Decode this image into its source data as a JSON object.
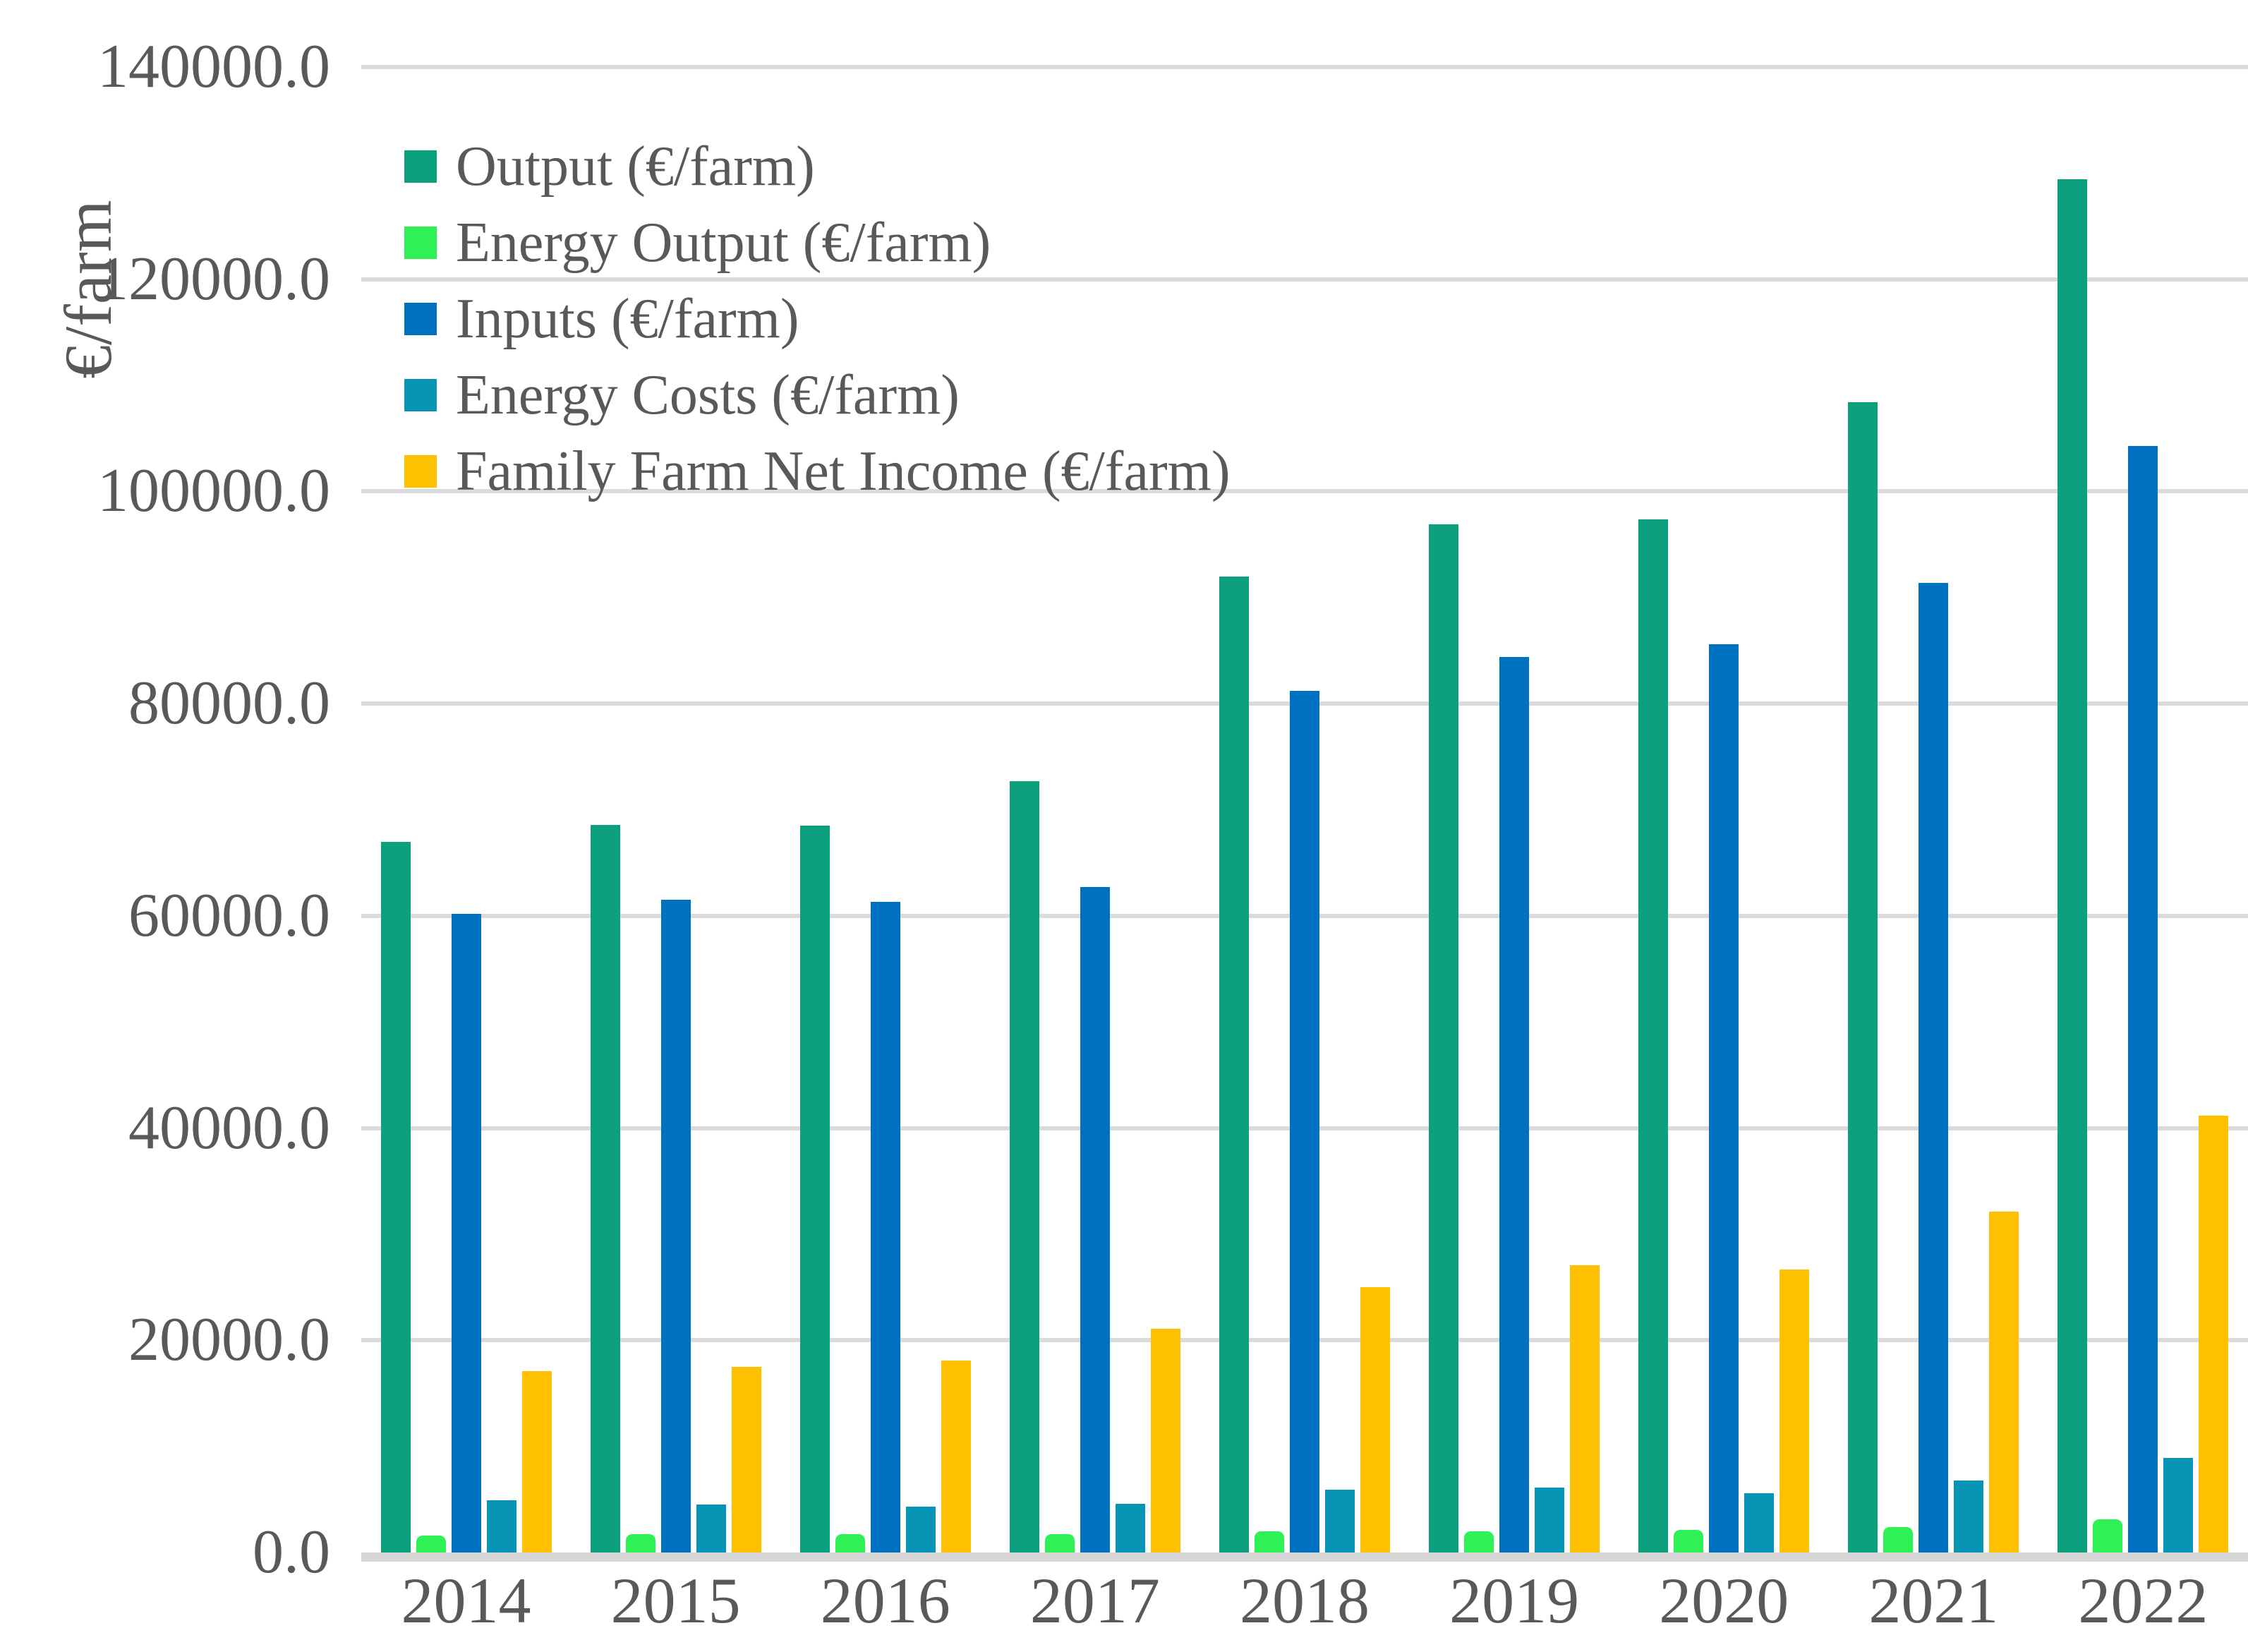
{
  "figure": {
    "background_color": "#FFFFFF",
    "text_color": "#595959",
    "grid_color": "#DBDBDB",
    "axis_line_color": "#D6D6D6"
  },
  "chart_data": {
    "type": "bar",
    "title": "",
    "xlabel": "",
    "ylabel": "€/farm",
    "grid": true,
    "legend_position": "upper-left-inside",
    "ylim": [
      0,
      140000
    ],
    "categories": [
      "2014",
      "2015",
      "2016",
      "2017",
      "2018",
      "2019",
      "2020",
      "2021",
      "2022"
    ],
    "yticks": [
      {
        "value": 140000,
        "label": "140000.0"
      },
      {
        "value": 120000,
        "label": "120000.0"
      },
      {
        "value": 100000,
        "label": "100000.0"
      },
      {
        "value": 80000,
        "label": "80000.0"
      },
      {
        "value": 60000,
        "label": "60000.0"
      },
      {
        "value": 40000,
        "label": "40000.0"
      },
      {
        "value": 20000,
        "label": "20000.0"
      },
      {
        "value": 0,
        "label": "0.0"
      }
    ],
    "series": [
      {
        "name": "Output (€/farm)",
        "color": "#0DA07F",
        "values": [
          67000,
          68600,
          68500,
          72700,
          92000,
          96900,
          97400,
          108400,
          129400
        ]
      },
      {
        "name": "Energy Output (€/farm)",
        "color": "#2DF155",
        "values": [
          1600,
          1700,
          1700,
          1700,
          2000,
          2000,
          2100,
          2400,
          3100
        ]
      },
      {
        "name": "Inputs (€/farm)",
        "color": "#0070C0",
        "values": [
          60200,
          61500,
          61300,
          62700,
          81200,
          84400,
          85600,
          91400,
          104300
        ]
      },
      {
        "name": "Energy Costs (€/farm)",
        "color": "#0894B4",
        "values": [
          4900,
          4500,
          4300,
          4600,
          5900,
          6100,
          5600,
          6800,
          8900
        ]
      },
      {
        "name": "Family Farm Net Income (€/farm)",
        "color": "#FFC000",
        "values": [
          17100,
          17500,
          18100,
          21100,
          25000,
          27100,
          26700,
          32100,
          41200
        ]
      }
    ]
  }
}
